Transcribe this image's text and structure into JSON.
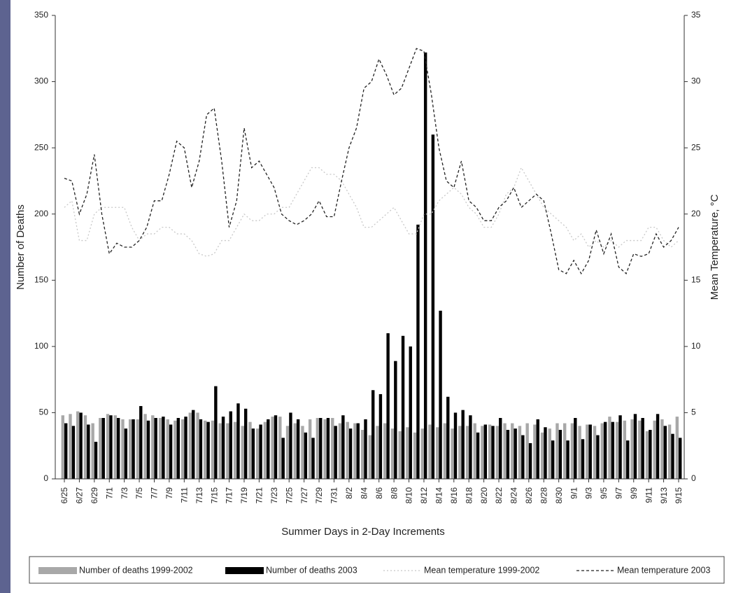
{
  "chart_data": {
    "type": "bar",
    "xlabel": "Summer Days in 2-Day Increments",
    "ylabel": "Number of Deaths",
    "y2label": "Mean Temperature, °C",
    "categories": [
      "6/25",
      null,
      "6/27",
      null,
      "6/29",
      null,
      "7/1",
      null,
      "7/3",
      null,
      "7/5",
      null,
      "7/7",
      null,
      "7/9",
      null,
      "7/11",
      null,
      "7/13",
      null,
      "7/15",
      null,
      "7/17",
      null,
      "7/19",
      null,
      "7/21",
      null,
      "7/23",
      null,
      "7/25",
      null,
      "7/27",
      null,
      "7/29",
      null,
      "7/31",
      null,
      "8/2",
      null,
      "8/4",
      null,
      "8/6",
      null,
      "8/8",
      null,
      "8/10",
      null,
      "8/12",
      null,
      "8/14",
      null,
      "8/16",
      null,
      "8/18",
      null,
      "8/20",
      null,
      "8/22",
      null,
      "8/24",
      null,
      "8/26",
      null,
      "8/28",
      null,
      "8/30",
      null,
      "9/1",
      null,
      "9/3",
      null,
      "9/5",
      null,
      "9/7",
      null,
      "9/9",
      null,
      "9/11",
      null,
      "9/13",
      null,
      "9/15"
    ],
    "series": [
      {
        "name": "Number of deaths 1999-2002",
        "type": "bar",
        "color": "#a8a8a8",
        "values": [
          48,
          49,
          51,
          48,
          42,
          46,
          49,
          48,
          45,
          45,
          45,
          49,
          48,
          46,
          45,
          44,
          45,
          50,
          50,
          44,
          44,
          42,
          42,
          43,
          40,
          43,
          38,
          43,
          47,
          47,
          40,
          42,
          40,
          45,
          46,
          45,
          46,
          42,
          43,
          42,
          37,
          33,
          40,
          42,
          38,
          36,
          39,
          35,
          38,
          41,
          39,
          42,
          38,
          40,
          40,
          42,
          40,
          41,
          40,
          42,
          42,
          40,
          42,
          41,
          35,
          38,
          42,
          42,
          42,
          40,
          41,
          40,
          42,
          47,
          43,
          44,
          45,
          44,
          36,
          44,
          45,
          41,
          47
        ]
      },
      {
        "name": "Number of deaths 2003",
        "type": "bar",
        "color": "#000000",
        "values": [
          42,
          40,
          50,
          41,
          28,
          46,
          48,
          46,
          38,
          45,
          55,
          44,
          46,
          47,
          41,
          46,
          47,
          52,
          45,
          43,
          70,
          47,
          51,
          57,
          53,
          38,
          41,
          45,
          48,
          31,
          50,
          45,
          35,
          31,
          46,
          46,
          40,
          48,
          38,
          42,
          45,
          67,
          64,
          110,
          89,
          108,
          100,
          192,
          322,
          260,
          127,
          62,
          50,
          52,
          48,
          35,
          41,
          40,
          46,
          37,
          38,
          33,
          27,
          45,
          39,
          29,
          37,
          29,
          46,
          30,
          41,
          33,
          43,
          43,
          48,
          29,
          49,
          46,
          37,
          49,
          40,
          34,
          31
        ]
      },
      {
        "name": "Mean temperature 1999-2002",
        "type": "line",
        "axis": "y2",
        "color": "#c8c8c8",
        "dash": "dotted",
        "values": [
          20.5,
          21,
          18,
          18,
          20,
          20.5,
          20.5,
          20.5,
          20.5,
          19,
          18,
          18.5,
          18.5,
          19,
          19,
          18.5,
          18.5,
          18,
          17,
          16.8,
          17,
          18,
          18,
          19,
          20,
          19.5,
          19.5,
          20,
          20,
          20.5,
          20.5,
          21.5,
          22.5,
          23.5,
          23.5,
          23,
          23,
          22.5,
          21.5,
          20.5,
          19,
          19,
          19.5,
          20,
          20.5,
          19.5,
          18.5,
          18.5,
          20,
          20,
          21,
          21.5,
          22,
          21.5,
          20.5,
          20,
          19,
          19,
          20,
          21.5,
          22,
          23.5,
          22.5,
          21.5,
          20.5,
          20,
          19.5,
          19,
          18,
          18.5,
          17.5,
          18,
          17.5,
          18,
          17.5,
          18,
          18,
          18,
          19,
          19,
          18,
          17.5,
          18
        ]
      },
      {
        "name": "Mean temperature 2003",
        "type": "line",
        "axis": "y2",
        "color": "#222222",
        "dash": "dashed",
        "values": [
          22.7,
          22.5,
          20,
          21.5,
          24.5,
          20,
          17,
          17.8,
          17.5,
          17.5,
          18,
          19,
          21,
          21,
          23,
          25.5,
          25,
          22,
          24,
          27.5,
          28,
          24,
          19,
          21,
          26.5,
          23.5,
          24,
          23,
          22,
          20,
          19.5,
          19.2,
          19.5,
          20,
          21,
          19.8,
          19.8,
          22.5,
          25,
          26.5,
          29.5,
          30,
          31.7,
          30.5,
          29,
          29.5,
          31,
          32.5,
          32.3,
          29,
          25,
          22.5,
          22,
          24,
          21,
          20.5,
          19.5,
          19.5,
          20.5,
          21,
          22,
          20.5,
          21,
          21.5,
          21,
          18.5,
          15.8,
          15.5,
          16.5,
          15.5,
          16.5,
          18.8,
          17,
          18.5,
          16,
          15.5,
          17,
          16.8,
          17,
          18.5,
          17.5,
          18,
          19
        ]
      }
    ],
    "ylim": [
      0,
      350
    ],
    "yticks": [
      0,
      50,
      100,
      150,
      200,
      250,
      300,
      350
    ],
    "y2lim": [
      0,
      35
    ],
    "y2ticks": [
      0,
      5,
      10,
      15,
      20,
      25,
      30,
      35
    ],
    "legend": "bottom"
  }
}
